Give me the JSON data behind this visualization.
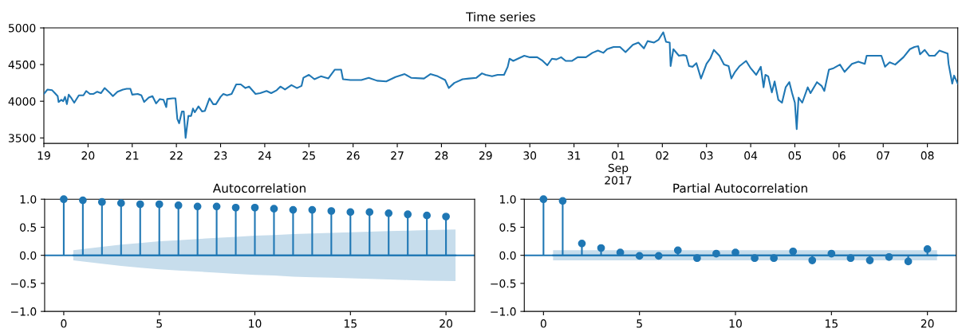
{
  "chart_data": [
    {
      "type": "line",
      "title": "Time series",
      "x": [
        "2017-08-19T00:00",
        "2017-08-19T02:00",
        "2017-08-19T04:30",
        "2017-08-19T06:00",
        "2017-08-19T07:30",
        "2017-08-19T08:00",
        "2017-08-19T09:30",
        "2017-08-19T10:30",
        "2017-08-19T11:30",
        "2017-08-19T12:30",
        "2017-08-19T13:30",
        "2017-08-19T15:00",
        "2017-08-19T16:30",
        "2017-08-19T19:00",
        "2017-08-19T21:30",
        "2017-08-19T23:00",
        "2017-08-20T01:00",
        "2017-08-20T03:00",
        "2017-08-20T05:00",
        "2017-08-20T07:00",
        "2017-08-20T09:00",
        "2017-08-20T12:00",
        "2017-08-20T13:30",
        "2017-08-20T16:00",
        "2017-08-20T19:00",
        "2017-08-20T21:00",
        "2017-08-20T23:00",
        "2017-08-21T00:00",
        "2017-08-21T03:00",
        "2017-08-21T05:00",
        "2017-08-21T06:30",
        "2017-08-21T09:00",
        "2017-08-21T11:00",
        "2017-08-21T13:00",
        "2017-08-21T15:00",
        "2017-08-21T17:00",
        "2017-08-21T18:30",
        "2017-08-21T19:00",
        "2017-08-21T22:00",
        "2017-08-21T23:30",
        "2017-08-22T00:30",
        "2017-08-22T01:30",
        "2017-08-22T03:00",
        "2017-08-22T04:00",
        "2017-08-22T05:00",
        "2017-08-22T06:30",
        "2017-08-22T08:00",
        "2017-08-22T09:00",
        "2017-08-22T10:00",
        "2017-08-22T12:00",
        "2017-08-22T14:00",
        "2017-08-22T15:30",
        "2017-08-22T18:00",
        "2017-08-22T20:00",
        "2017-08-22T21:30",
        "2017-08-23T00:00",
        "2017-08-23T01:30",
        "2017-08-23T03:30",
        "2017-08-23T06:00",
        "2017-08-23T08:30",
        "2017-08-23T11:00",
        "2017-08-23T13:30",
        "2017-08-23T15:30",
        "2017-08-23T19:00",
        "2017-08-23T21:30",
        "2017-08-24T01:00",
        "2017-08-24T03:30",
        "2017-08-24T06:30",
        "2017-08-24T08:30",
        "2017-08-24T11:00",
        "2017-08-24T14:30",
        "2017-08-24T17:30",
        "2017-08-24T20:00",
        "2017-08-24T21:00",
        "2017-08-25T00:00",
        "2017-08-25T03:00",
        "2017-08-25T06:30",
        "2017-08-25T10:30",
        "2017-08-25T14:00",
        "2017-08-25T17:30",
        "2017-08-25T18:30",
        "2017-08-25T22:30",
        "2017-08-26T04:30",
        "2017-08-26T08:30",
        "2017-08-26T13:00",
        "2017-08-26T18:00",
        "2017-08-26T23:00",
        "2017-08-27T04:00",
        "2017-08-27T07:30",
        "2017-08-27T14:30",
        "2017-08-27T18:00",
        "2017-08-27T22:00",
        "2017-08-28T02:00",
        "2017-08-28T04:00",
        "2017-08-28T07:00",
        "2017-08-28T11:30",
        "2017-08-28T15:00",
        "2017-08-28T19:00",
        "2017-08-28T22:00",
        "2017-08-29T00:00",
        "2017-08-29T03:30",
        "2017-08-29T06:30",
        "2017-08-29T10:00",
        "2017-08-29T12:00",
        "2017-08-29T13:00",
        "2017-08-29T15:00",
        "2017-08-29T17:30",
        "2017-08-29T21:00",
        "2017-08-30T00:00",
        "2017-08-30T04:00",
        "2017-08-30T07:00",
        "2017-08-30T09:30",
        "2017-08-30T12:00",
        "2017-08-30T14:30",
        "2017-08-30T17:00",
        "2017-08-30T19:30",
        "2017-08-30T23:00",
        "2017-08-31T02:00",
        "2017-08-31T06:30",
        "2017-08-31T10:00",
        "2017-08-31T13:00",
        "2017-08-31T16:00",
        "2017-08-31T18:00",
        "2017-08-31T21:30",
        "2017-09-01T01:00",
        "2017-09-01T04:00",
        "2017-09-01T08:00",
        "2017-09-01T11:00",
        "2017-09-01T14:00",
        "2017-09-01T16:00",
        "2017-09-01T19:30",
        "2017-09-01T22:00",
        "2017-09-02T00:30",
        "2017-09-02T02:00",
        "2017-09-02T04:00",
        "2017-09-02T04:30",
        "2017-09-02T06:00",
        "2017-09-02T09:00",
        "2017-09-02T11:30",
        "2017-09-02T13:00",
        "2017-09-02T14:30",
        "2017-09-02T16:30",
        "2017-09-02T18:30",
        "2017-09-02T21:00",
        "2017-09-03T00:00",
        "2017-09-03T02:00",
        "2017-09-03T04:00",
        "2017-09-03T07:00",
        "2017-09-03T09:30",
        "2017-09-03T12:00",
        "2017-09-03T13:30",
        "2017-09-03T15:30",
        "2017-09-03T18:00",
        "2017-09-03T21:30",
        "2017-09-04T00:00",
        "2017-09-04T03:00",
        "2017-09-04T05:30",
        "2017-09-04T07:00",
        "2017-09-04T08:00",
        "2017-09-04T09:30",
        "2017-09-04T11:30",
        "2017-09-04T13:00",
        "2017-09-04T15:00",
        "2017-09-04T17:00",
        "2017-09-04T19:00",
        "2017-09-04T21:00",
        "2017-09-04T22:30",
        "2017-09-05T00:00",
        "2017-09-05T01:00",
        "2017-09-05T02:00",
        "2017-09-05T04:00",
        "2017-09-05T07:00",
        "2017-09-05T08:30",
        "2017-09-05T12:00",
        "2017-09-05T14:30",
        "2017-09-05T16:00",
        "2017-09-05T18:30",
        "2017-09-05T21:00",
        "2017-09-06T00:30",
        "2017-09-06T03:00",
        "2017-09-06T07:00",
        "2017-09-06T10:30",
        "2017-09-06T14:00",
        "2017-09-06T15:00",
        "2017-09-06T23:00",
        "2017-09-07T01:00",
        "2017-09-07T03:30",
        "2017-09-07T06:30",
        "2017-09-07T11:00",
        "2017-09-07T14:30",
        "2017-09-07T17:00",
        "2017-09-07T19:00",
        "2017-09-07T20:00",
        "2017-09-07T22:30",
        "2017-09-08T01:00",
        "2017-09-08T04:00",
        "2017-09-08T06:30",
        "2017-09-08T11:00",
        "2017-09-08T11:30",
        "2017-09-08T13:30",
        "2017-09-08T14:30",
        "2017-09-08T16:30"
      ],
      "series": [
        {
          "color": "#1f77b4",
          "values": [
            4100,
            4160,
            4150,
            4110,
            4070,
            3990,
            4020,
            4000,
            4060,
            3960,
            4090,
            4040,
            3980,
            4080,
            4080,
            4140,
            4100,
            4100,
            4130,
            4110,
            4180,
            4110,
            4070,
            4130,
            4160,
            4170,
            4170,
            4090,
            4100,
            4080,
            3990,
            4050,
            4070,
            3970,
            4030,
            4020,
            3920,
            4030,
            4040,
            4040,
            3760,
            3700,
            3860,
            3860,
            3500,
            3800,
            3800,
            3900,
            3850,
            3930,
            3860,
            3870,
            4040,
            3960,
            3960,
            4060,
            4100,
            4080,
            4100,
            4230,
            4230,
            4180,
            4200,
            4100,
            4110,
            4140,
            4110,
            4150,
            4200,
            4160,
            4220,
            4180,
            4210,
            4320,
            4360,
            4300,
            4340,
            4310,
            4430,
            4430,
            4300,
            4290,
            4290,
            4320,
            4280,
            4270,
            4330,
            4370,
            4320,
            4310,
            4370,
            4340,
            4290,
            4180,
            4250,
            4300,
            4310,
            4320,
            4380,
            4360,
            4340,
            4360,
            4360,
            4470,
            4580,
            4550,
            4580,
            4620,
            4600,
            4600,
            4550,
            4490,
            4580,
            4570,
            4600,
            4550,
            4550,
            4600,
            4600,
            4660,
            4690,
            4660,
            4710,
            4740,
            4740,
            4670,
            4770,
            4800,
            4720,
            4820,
            4800,
            4840,
            4940,
            4810,
            4800,
            4480,
            4710,
            4620,
            4630,
            4620,
            4480,
            4470,
            4520,
            4310,
            4510,
            4580,
            4700,
            4620,
            4500,
            4480,
            4310,
            4400,
            4480,
            4550,
            4450,
            4360,
            4470,
            4190,
            4360,
            4340,
            4120,
            4270,
            4020,
            3980,
            4190,
            4260,
            4110,
            3980,
            3620,
            4050,
            3980,
            4190,
            4110,
            4260,
            4210,
            4140,
            4430,
            4450,
            4500,
            4400,
            4510,
            4540,
            4510,
            4620,
            4620,
            4470,
            4530,
            4500,
            4600,
            4710,
            4740,
            4750,
            4640,
            4700,
            4620,
            4620,
            4690,
            4650,
            4510,
            4240,
            4350,
            4240
          ]
        }
      ],
      "xlim": [
        "2017-08-19T00:00",
        "2017-09-08T16:30"
      ],
      "ylim": [
        3425,
        5000
      ],
      "xticks": [
        {
          "value": "2017-08-19",
          "label": "19"
        },
        {
          "value": "2017-08-20",
          "label": "20"
        },
        {
          "value": "2017-08-21",
          "label": "21"
        },
        {
          "value": "2017-08-22",
          "label": "22"
        },
        {
          "value": "2017-08-23",
          "label": "23"
        },
        {
          "value": "2017-08-24",
          "label": "24"
        },
        {
          "value": "2017-08-25",
          "label": "25"
        },
        {
          "value": "2017-08-26",
          "label": "26"
        },
        {
          "value": "2017-08-27",
          "label": "27"
        },
        {
          "value": "2017-08-28",
          "label": "28"
        },
        {
          "value": "2017-08-29",
          "label": "29"
        },
        {
          "value": "2017-08-30",
          "label": "30"
        },
        {
          "value": "2017-08-31",
          "label": "31"
        },
        {
          "value": "2017-09-01",
          "label": "01\nSep\n2017"
        },
        {
          "value": "2017-09-02",
          "label": "02"
        },
        {
          "value": "2017-09-03",
          "label": "03"
        },
        {
          "value": "2017-09-04",
          "label": "04"
        },
        {
          "value": "2017-09-05",
          "label": "05"
        },
        {
          "value": "2017-09-06",
          "label": "06"
        },
        {
          "value": "2017-09-07",
          "label": "07"
        },
        {
          "value": "2017-09-08",
          "label": "08"
        }
      ],
      "yticks": [
        3500,
        4000,
        4500,
        5000
      ]
    },
    {
      "type": "lollipop",
      "title": "Autocorrelation",
      "marker": "circle",
      "series": [
        {
          "type": "line",
          "marker": "none",
          "color": "#1f77b4",
          "x": [
            0.5,
            2,
            3,
            4,
            5,
            6,
            7,
            8,
            9,
            10,
            11,
            12,
            13,
            14,
            15,
            16,
            17,
            18,
            19,
            20.5
          ],
          "values": [
            0,
            0,
            0,
            0,
            0,
            0,
            0,
            0,
            0,
            0,
            0,
            0,
            0,
            0,
            0,
            0,
            0,
            0,
            0,
            0
          ],
          "lower": [
            -0.09,
            -0.15,
            -0.19,
            -0.22,
            -0.25,
            -0.27,
            -0.29,
            -0.31,
            -0.33,
            -0.35,
            -0.36,
            -0.38,
            -0.39,
            -0.4,
            -0.41,
            -0.42,
            -0.43,
            -0.44,
            -0.45,
            -0.46
          ],
          "upper": [
            0.09,
            0.15,
            0.19,
            0.22,
            0.25,
            0.27,
            0.29,
            0.31,
            0.33,
            0.35,
            0.36,
            0.38,
            0.39,
            0.4,
            0.41,
            0.42,
            0.43,
            0.44,
            0.45,
            0.46
          ]
        },
        {
          "color": "#1f77b4",
          "x": [
            0,
            1,
            2,
            3,
            4,
            5,
            6,
            7,
            8,
            9,
            10,
            11,
            12,
            13,
            14,
            15,
            16,
            17,
            18,
            19,
            20
          ],
          "values": [
            1.0,
            0.98,
            0.95,
            0.93,
            0.91,
            0.91,
            0.89,
            0.87,
            0.87,
            0.85,
            0.85,
            0.83,
            0.81,
            0.81,
            0.79,
            0.77,
            0.77,
            0.75,
            0.73,
            0.71,
            0.69
          ]
        }
      ],
      "ref_lines": [
        {
          "axis": "y",
          "value": 0,
          "color": "#1f77b4"
        }
      ],
      "xlim": [
        -1,
        21.5
      ],
      "ylim": [
        -1,
        1
      ],
      "xticks": [
        0,
        5,
        10,
        15,
        20
      ],
      "yticks": [
        {
          "value": -1,
          "label": "−1.0"
        },
        {
          "value": -0.5,
          "label": "−0.5"
        },
        {
          "value": 0,
          "label": "0.0"
        },
        {
          "value": 0.5,
          "label": "0.5"
        },
        {
          "value": 1,
          "label": "1.0"
        }
      ]
    },
    {
      "type": "lollipop",
      "title": "Partial Autocorrelation",
      "marker": "circle",
      "series": [
        {
          "type": "line",
          "marker": "none",
          "color": "#1f77b4",
          "x": [
            0.5,
            20.5
          ],
          "values": [
            0,
            0
          ],
          "lower": [
            -0.09,
            -0.09
          ],
          "upper": [
            0.09,
            0.09
          ]
        },
        {
          "color": "#1f77b4",
          "x": [
            0,
            1,
            2,
            3,
            4,
            5,
            6,
            7,
            8,
            9,
            10,
            11,
            12,
            13,
            14,
            15,
            16,
            17,
            18,
            19,
            20
          ],
          "values": [
            1.0,
            0.97,
            0.21,
            0.13,
            0.05,
            -0.01,
            -0.01,
            0.09,
            -0.05,
            0.03,
            0.05,
            -0.05,
            -0.05,
            0.07,
            -0.09,
            0.03,
            -0.05,
            -0.09,
            -0.03,
            -0.11,
            0.11
          ]
        }
      ],
      "ref_lines": [
        {
          "axis": "y",
          "value": 0,
          "color": "#1f77b4"
        }
      ],
      "xlim": [
        -1,
        21.5
      ],
      "ylim": [
        -1,
        1
      ],
      "xticks": [
        0,
        5,
        10,
        15,
        20
      ],
      "yticks": [
        {
          "value": -1,
          "label": "−1.0"
        },
        {
          "value": -0.5,
          "label": "−0.5"
        },
        {
          "value": 0,
          "label": "0.0"
        },
        {
          "value": 0.5,
          "label": "0.5"
        },
        {
          "value": 1,
          "label": "1.0"
        }
      ]
    }
  ]
}
